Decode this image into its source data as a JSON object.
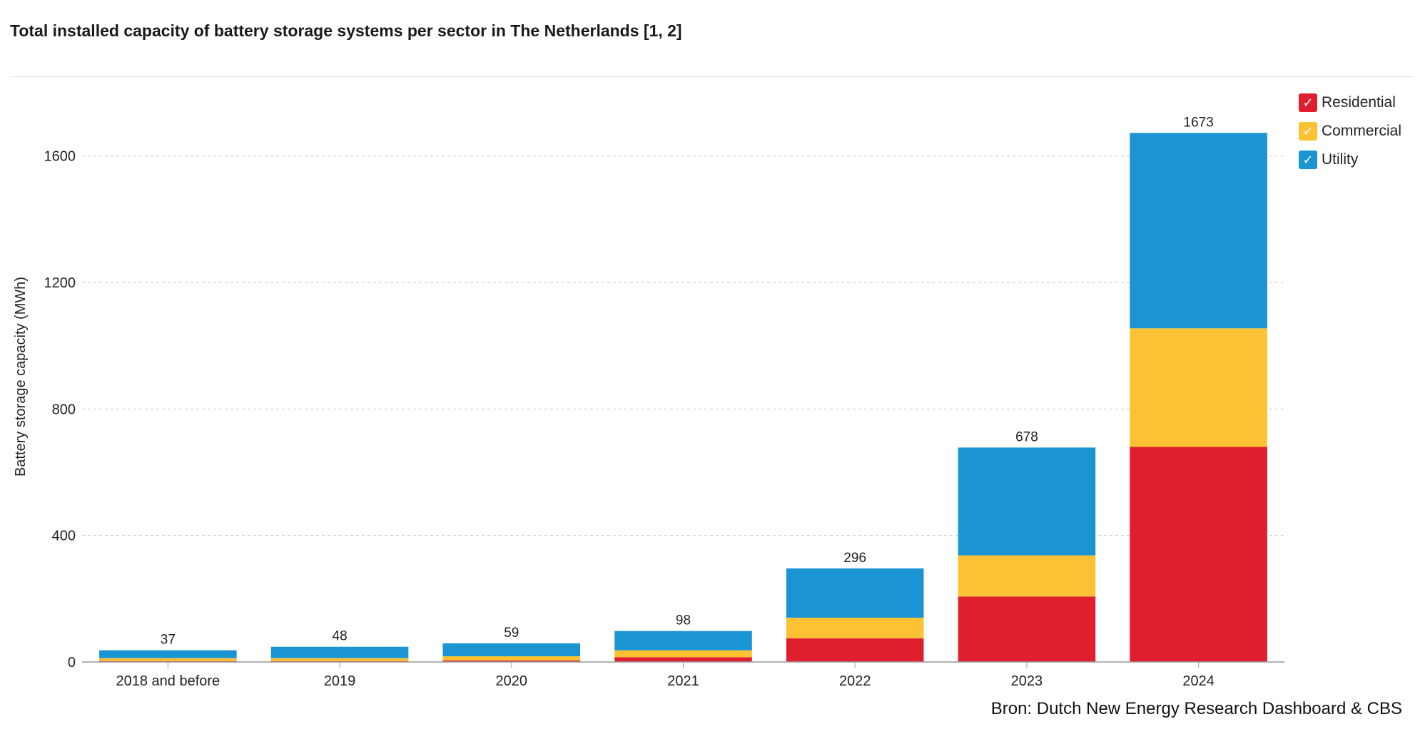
{
  "chart_data": {
    "type": "bar",
    "stacked": true,
    "title": "Total installed capacity of battery storage systems per sector in The Netherlands [1, 2]",
    "xlabel": "",
    "ylabel": "Battery storage capacity (MWh)",
    "ylim": [
      0,
      1800
    ],
    "yticks": [
      0,
      400,
      800,
      1200,
      1600
    ],
    "grid": true,
    "legend_position": "top-right",
    "categories": [
      "2018 and before",
      "2019",
      "2020",
      "2021",
      "2022",
      "2023",
      "2024"
    ],
    "series": [
      {
        "name": "Residential",
        "color": "#e01f2e",
        "values": [
          3,
          3,
          5,
          15,
          75,
          207,
          680
        ]
      },
      {
        "name": "Commercial",
        "color": "#fcc233",
        "values": [
          9,
          9,
          13,
          22,
          65,
          130,
          375
        ]
      },
      {
        "name": "Utility",
        "color": "#1b94d4",
        "values": [
          25,
          36,
          41,
          61,
          156,
          341,
          618
        ]
      }
    ],
    "totals": [
      37,
      48,
      59,
      98,
      296,
      678,
      1673
    ],
    "source": "Bron: Dutch New Energy Research Dashboard & CBS"
  },
  "legend": {
    "check_glyph": "✓"
  }
}
